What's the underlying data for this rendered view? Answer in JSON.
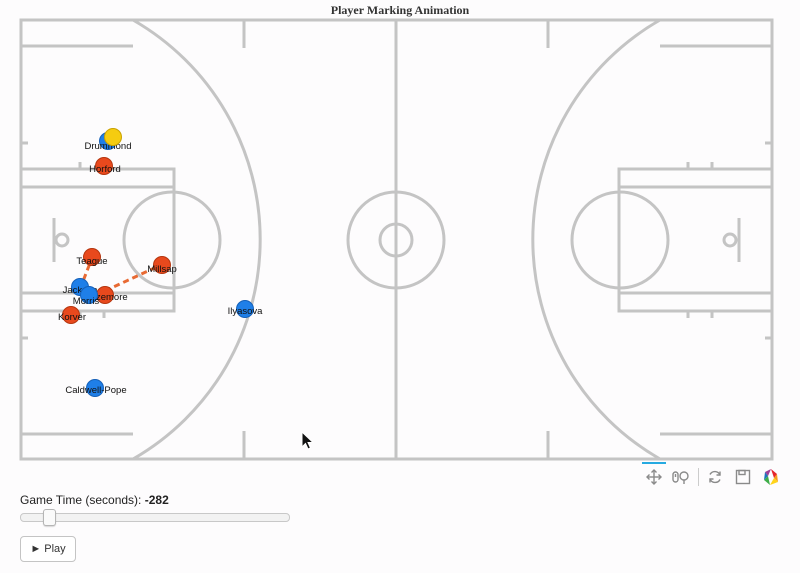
{
  "title": "Player Marking Animation",
  "colors": {
    "court_line": "#c4c4c4",
    "team_blue": "#1f7fe8",
    "team_red": "#e8491d",
    "ball": "#f5cc10",
    "marking_line": "#e86a33"
  },
  "players": [
    {
      "name": "Drummond",
      "team": "blue"
    },
    {
      "name": "Horford",
      "team": "red"
    },
    {
      "name": "Teague",
      "team": "red"
    },
    {
      "name": "Millsap",
      "team": "red"
    },
    {
      "name": "Jackson",
      "team": "blue"
    },
    {
      "name": "Bazemore",
      "team": "red"
    },
    {
      "name": "Morris",
      "team": "blue"
    },
    {
      "name": "Korver",
      "team": "red"
    },
    {
      "name": "Ilyasova",
      "team": "blue"
    },
    {
      "name": "Caldwell-Pope",
      "team": "blue"
    }
  ],
  "toolbar": {
    "pan_icon": "move-arrows-icon",
    "wheel_zoom_icon": "wheel-zoom-icon",
    "reset_icon": "reset-icon",
    "save_icon": "save-icon",
    "logo_icon": "bokeh-logo-icon"
  },
  "slider": {
    "label": "Game Time (seconds):",
    "value": "-282"
  },
  "play_button": {
    "label": "► Play"
  }
}
